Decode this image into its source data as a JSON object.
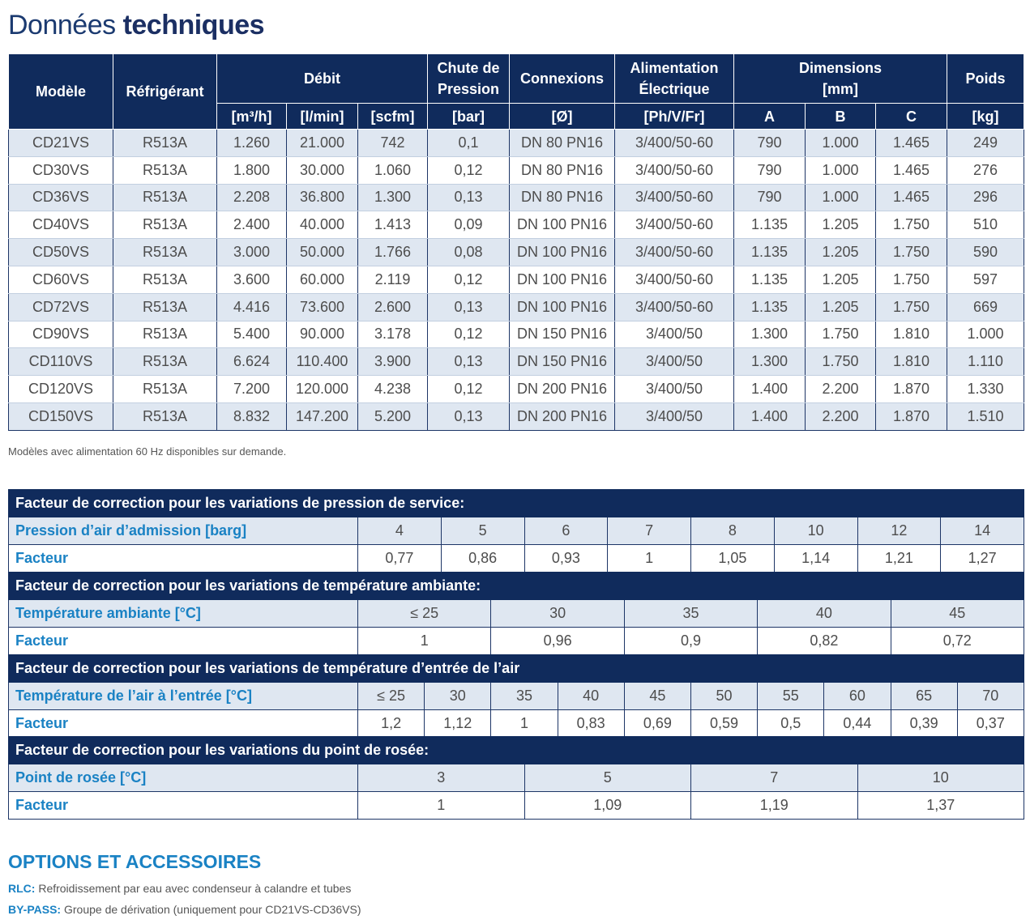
{
  "title": {
    "light": "Données",
    "bold": "techniques"
  },
  "specs": {
    "headers": {
      "modele": "Modèle",
      "refrigerant": "Réfrigérant",
      "debit": "Débit",
      "chute_l1": "Chute de",
      "chute_l2": "Pression",
      "connexions": "Connexions",
      "alim_l1": "Alimentation",
      "alim_l2": "Électrique",
      "dim_l1": "Dimensions",
      "dim_l2": "[mm]",
      "poids": "Poids"
    },
    "units": {
      "m3h": "[m³/h]",
      "lmin": "[l/min]",
      "scfm": "[scfm]",
      "bar": "[bar]",
      "diam": "[Ø]",
      "phvfr": "[Ph/V/Fr]",
      "a": "A",
      "b": "B",
      "c": "C",
      "kg": "[kg]"
    },
    "rows": [
      [
        "CD21VS",
        "R513A",
        "1.260",
        "21.000",
        "742",
        "0,1",
        "DN 80 PN16",
        "3/400/50-60",
        "790",
        "1.000",
        "1.465",
        "249"
      ],
      [
        "CD30VS",
        "R513A",
        "1.800",
        "30.000",
        "1.060",
        "0,12",
        "DN 80 PN16",
        "3/400/50-60",
        "790",
        "1.000",
        "1.465",
        "276"
      ],
      [
        "CD36VS",
        "R513A",
        "2.208",
        "36.800",
        "1.300",
        "0,13",
        "DN 80 PN16",
        "3/400/50-60",
        "790",
        "1.000",
        "1.465",
        "296"
      ],
      [
        "CD40VS",
        "R513A",
        "2.400",
        "40.000",
        "1.413",
        "0,09",
        "DN 100 PN16",
        "3/400/50-60",
        "1.135",
        "1.205",
        "1.750",
        "510"
      ],
      [
        "CD50VS",
        "R513A",
        "3.000",
        "50.000",
        "1.766",
        "0,08",
        "DN 100 PN16",
        "3/400/50-60",
        "1.135",
        "1.205",
        "1.750",
        "590"
      ],
      [
        "CD60VS",
        "R513A",
        "3.600",
        "60.000",
        "2.119",
        "0,12",
        "DN 100 PN16",
        "3/400/50-60",
        "1.135",
        "1.205",
        "1.750",
        "597"
      ],
      [
        "CD72VS",
        "R513A",
        "4.416",
        "73.600",
        "2.600",
        "0,13",
        "DN 100 PN16",
        "3/400/50-60",
        "1.135",
        "1.205",
        "1.750",
        "669"
      ],
      [
        "CD90VS",
        "R513A",
        "5.400",
        "90.000",
        "3.178",
        "0,12",
        "DN 150 PN16",
        "3/400/50",
        "1.300",
        "1.750",
        "1.810",
        "1.000"
      ],
      [
        "CD110VS",
        "R513A",
        "6.624",
        "110.400",
        "3.900",
        "0,13",
        "DN 150 PN16",
        "3/400/50",
        "1.300",
        "1.750",
        "1.810",
        "1.110"
      ],
      [
        "CD120VS",
        "R513A",
        "7.200",
        "120.000",
        "4.238",
        "0,12",
        "DN 200 PN16",
        "3/400/50",
        "1.400",
        "2.200",
        "1.870",
        "1.330"
      ],
      [
        "CD150VS",
        "R513A",
        "8.832",
        "147.200",
        "5.200",
        "0,13",
        "DN 200 PN16",
        "3/400/50",
        "1.400",
        "2.200",
        "1.870",
        "1.510"
      ]
    ]
  },
  "note": "Modèles avec alimentation 60 Hz disponibles sur demande.",
  "correction_tables": [
    {
      "title": "Facteur de correction pour les variations de pression de service:",
      "row1_label": "Pression d’air d’admission [barg]",
      "row1": [
        "4",
        "5",
        "6",
        "7",
        "8",
        "10",
        "12",
        "14"
      ],
      "row2_label": "Facteur",
      "row2": [
        "0,77",
        "0,86",
        "0,93",
        "1",
        "1,05",
        "1,14",
        "1,21",
        "1,27"
      ]
    },
    {
      "title": "Facteur de correction pour les variations de température ambiante:",
      "row1_label": "Température ambiante [°C]",
      "row1": [
        "≤ 25",
        "30",
        "35",
        "40",
        "45"
      ],
      "row2_label": "Facteur",
      "row2": [
        "1",
        "0,96",
        "0,9",
        "0,82",
        "0,72"
      ]
    },
    {
      "title": "Facteur de correction pour les variations de température d’entrée de l’air",
      "row1_label": "Température de l’air à l’entrée [°C]",
      "row1": [
        "≤ 25",
        "30",
        "35",
        "40",
        "45",
        "50",
        "55",
        "60",
        "65",
        "70"
      ],
      "row2_label": "Facteur",
      "row2": [
        "1,2",
        "1,12",
        "1",
        "0,83",
        "0,69",
        "0,59",
        "0,5",
        "0,44",
        "0,39",
        "0,37"
      ]
    },
    {
      "title": "Facteur de correction pour les variations du point de rosée:",
      "row1_label": "Point de rosée [°C]",
      "row1": [
        "3",
        "5",
        "7",
        "10"
      ],
      "row2_label": "Facteur",
      "row2": [
        "1",
        "1,09",
        "1,19",
        "1,37"
      ]
    }
  ],
  "options": {
    "title": "OPTIONS ET ACCESSOIRES",
    "items": [
      {
        "code": "RLC:",
        "text": " Refroidissement par eau avec condenseur à calandre et tubes"
      },
      {
        "code": "BY-PASS:",
        "text": " Groupe de dérivation (uniquement pour CD21VS-CD36VS)"
      }
    ]
  }
}
